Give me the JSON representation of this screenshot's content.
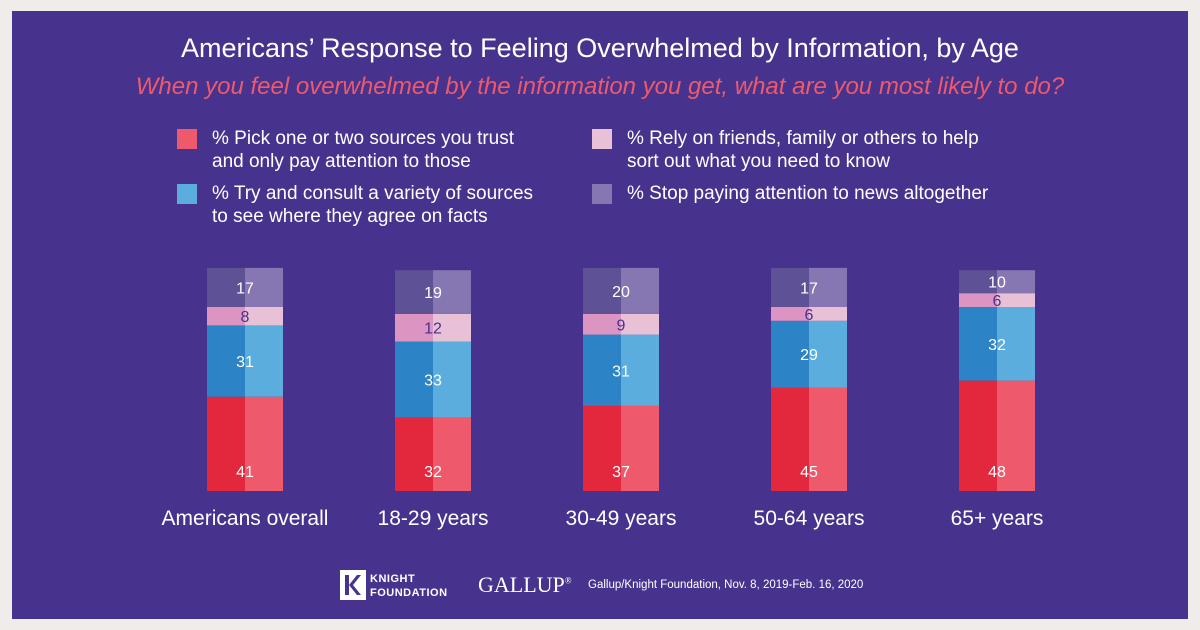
{
  "title": "Americans’ Response to Feeling Overwhelmed by Information, by Age",
  "subtitle": "When you feel overwhelmed by the information you get, what are you most likely to do?",
  "colors": {
    "background": "#47328d",
    "pick_one_or_two": "#ee5a6c",
    "variety_of_sources": "#5aaddd",
    "rely_on_friends": "#e8c1d7",
    "stop_paying_attention": "#8677b2"
  },
  "chart_data": {
    "type": "bar",
    "stacked": true,
    "orientation": "vertical",
    "categories": [
      "Americans overall",
      "18-29 years",
      "30-49 years",
      "50-64 years",
      "65+ years"
    ],
    "series": [
      {
        "name": "% Pick one or two sources you trust and only pay attention to those",
        "color": "#ee5a6c",
        "values": [
          41,
          32,
          37,
          45,
          48
        ]
      },
      {
        "name": "% Try and consult a variety of sources to see where they agree on facts",
        "color": "#5aaddd",
        "values": [
          31,
          33,
          31,
          29,
          32
        ]
      },
      {
        "name": "% Rely on friends, family or others to help sort out what you need to know",
        "color": "#e8c1d7",
        "values": [
          8,
          12,
          9,
          6,
          6
        ]
      },
      {
        "name": "% Stop paying attention to news altogether",
        "color": "#8677b2",
        "values": [
          17,
          19,
          20,
          17,
          10
        ]
      }
    ],
    "data_labels": true,
    "grid": false,
    "legend_position": "top"
  },
  "legend": [
    {
      "line1": "% Pick one or two sources you trust",
      "line2": "and only pay attention to those",
      "color": "#ee5a6c"
    },
    {
      "line1": "% Try and consult a variety of sources",
      "line2": "to see where they agree on facts",
      "color": "#5aaddd"
    },
    {
      "line1": "% Rely on friends, family or others to help",
      "line2": "sort out what you need to know",
      "color": "#e8c1d7"
    },
    {
      "line1": "% Stop paying attention to news altogether",
      "line2": "",
      "color": "#8677b2"
    }
  ],
  "footer": {
    "kf_logo_mark": "K F",
    "kf_line1": "KNIGHT",
    "kf_line2": "FOUNDATION",
    "gallup": "GALLUP",
    "gallup_mark": "®",
    "source": "Gallup/Knight Foundation, Nov. 8, 2019-Feb. 16, 2020"
  }
}
